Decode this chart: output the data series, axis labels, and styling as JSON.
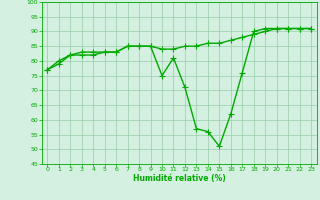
{
  "x": [
    0,
    1,
    2,
    3,
    4,
    5,
    6,
    7,
    8,
    9,
    10,
    11,
    12,
    13,
    14,
    15,
    16,
    17,
    18,
    19,
    20,
    21,
    22,
    23
  ],
  "line1": [
    77,
    80,
    82,
    82,
    82,
    83,
    83,
    85,
    85,
    85,
    75,
    81,
    71,
    57,
    56,
    51,
    62,
    76,
    90,
    91,
    91,
    91,
    91,
    91
  ],
  "line2": [
    77,
    79,
    82,
    83,
    83,
    83,
    83,
    85,
    85,
    85,
    84,
    84,
    85,
    85,
    86,
    86,
    87,
    88,
    89,
    90,
    91,
    91,
    91,
    91
  ],
  "xlabel": "Humidité relative (%)",
  "ylim": [
    45,
    100
  ],
  "xlim": [
    -0.5,
    23.5
  ],
  "yticks": [
    45,
    50,
    55,
    60,
    65,
    70,
    75,
    80,
    85,
    90,
    95,
    100
  ],
  "xticks": [
    0,
    1,
    2,
    3,
    4,
    5,
    6,
    7,
    8,
    9,
    10,
    11,
    12,
    13,
    14,
    15,
    16,
    17,
    18,
    19,
    20,
    21,
    22,
    23
  ],
  "line_color": "#00aa00",
  "bg_color": "#d4f0e0",
  "grid_color": "#99ccaa",
  "marker": "+",
  "linewidth": 1.0,
  "markersize": 4,
  "xlabel_fontsize": 5.5,
  "tick_fontsize": 4.5
}
